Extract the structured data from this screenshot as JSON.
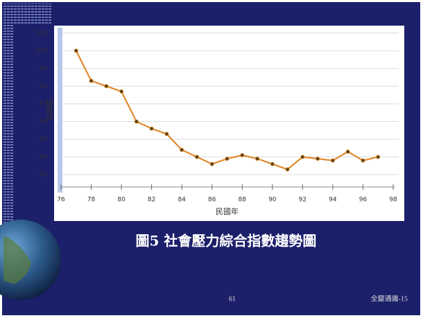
{
  "chart_data": {
    "type": "line",
    "title": "圖5 社會壓力綜合指數趨勢圖",
    "xlabel": "民國年",
    "ylabel": "指數值",
    "x": [
      77,
      78,
      79,
      80,
      81,
      82,
      83,
      84,
      85,
      86,
      87,
      88,
      89,
      90,
      91,
      92,
      93,
      94,
      95,
      96,
      97
    ],
    "series": [
      {
        "color": "#e08a2e",
        "marker_color": "#5a4414",
        "values": [
          100,
          98.3,
          98.0,
          97.7,
          96.0,
          95.6,
          95.3,
          94.4,
          94.0,
          93.6,
          93.9,
          94.1,
          93.9,
          93.6,
          93.3,
          94.0,
          93.9,
          93.8,
          94.3,
          93.8,
          94.0
        ]
      }
    ],
    "xlim": [
      76,
      98
    ],
    "xticks": [
      76,
      78,
      80,
      82,
      84,
      86,
      88,
      90,
      92,
      94,
      96,
      98
    ],
    "ylim": [
      92.3,
      101.3
    ],
    "yticks": [
      93,
      94,
      95,
      96,
      97,
      98,
      99,
      100,
      101
    ],
    "grid": true
  },
  "slide": {
    "page_number": "61",
    "footer": "全變通識-15"
  }
}
